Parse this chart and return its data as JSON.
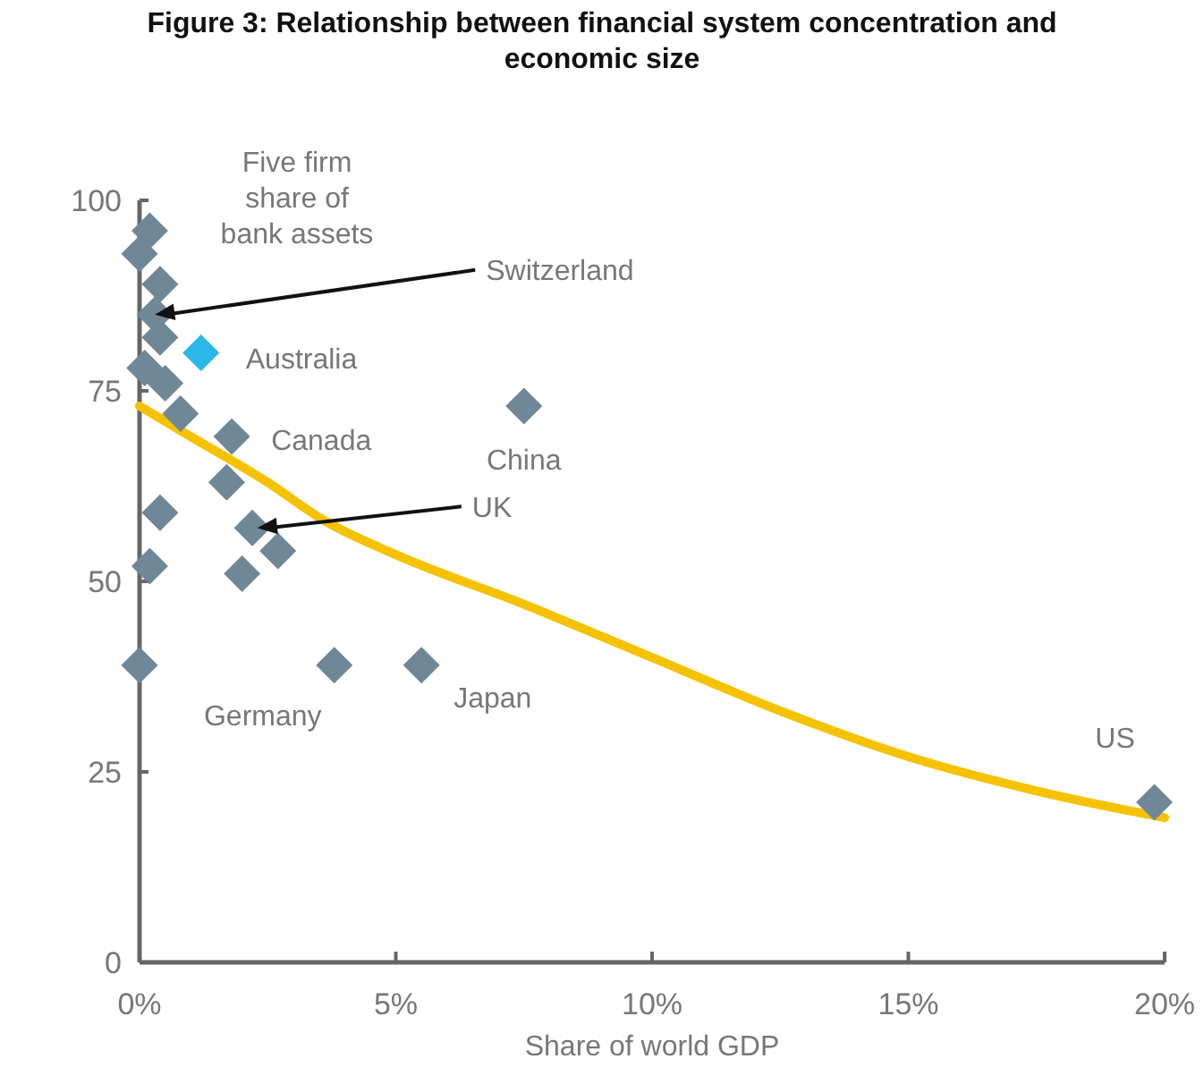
{
  "chart_data": {
    "type": "scatter",
    "title": "Figure 3: Relationship between financial system concentration and economic size",
    "xlabel": "Share of world GDP",
    "ylabel": "Five firm share of bank assets",
    "xlim": [
      0,
      20
    ],
    "xticks": [
      {
        "value": 0,
        "label": "0%"
      },
      {
        "value": 5,
        "label": "5%"
      },
      {
        "value": 10,
        "label": "10%"
      },
      {
        "value": 15,
        "label": "15%"
      },
      {
        "value": 20,
        "label": "20%"
      }
    ],
    "ylim": [
      0,
      100
    ],
    "yticks": [
      0,
      25,
      50,
      75,
      100
    ],
    "grid": false,
    "marker": "diamond",
    "series": [
      {
        "x": [
          0.2,
          0,
          0.4,
          0.3,
          0.4,
          0.1,
          0.5,
          1.2,
          0.8,
          1.8,
          1.7,
          0.4,
          2.2,
          2.7,
          0.2,
          2,
          0,
          3.8,
          5.5,
          7.5,
          19.8
        ],
        "values": [
          96,
          93,
          89,
          85,
          82,
          78,
          76,
          80,
          72,
          69,
          63,
          59,
          57,
          54,
          52,
          51,
          39,
          39,
          39,
          73,
          21
        ],
        "colors": [
          "#6f8796",
          "#6f8796",
          "#6f8796",
          "#6f8796",
          "#6f8796",
          "#6f8796",
          "#6f8796",
          "#2bb8e8",
          "#6f8796",
          "#6f8796",
          "#6f8796",
          "#6f8796",
          "#6f8796",
          "#6f8796",
          "#6f8796",
          "#6f8796",
          "#6f8796",
          "#6f8796",
          "#6f8796",
          "#6f8796",
          "#6f8796"
        ]
      },
      {
        "type": "line",
        "color": "#f5c200",
        "marker": "none",
        "line_style": "solid",
        "x": [
          0,
          1,
          2.5,
          3.6,
          5,
          7.5,
          10,
          12.5,
          15,
          17.5,
          20
        ],
        "values": [
          73,
          69,
          63,
          58,
          53.5,
          47,
          40,
          33,
          27,
          22.5,
          19
        ]
      }
    ],
    "annotations": [
      {
        "text": "Switzerland",
        "x": 0.3,
        "y": 85
      },
      {
        "text": "Australia",
        "x": 1.2,
        "y": 80
      },
      {
        "text": "Canada",
        "x": 1.8,
        "y": 69
      },
      {
        "text": "China",
        "x": 7.5,
        "y": 73
      },
      {
        "text": "UK",
        "x": 2.3,
        "y": 57
      },
      {
        "text": "Germany",
        "x": 3.8,
        "y": 39
      },
      {
        "text": "Japan",
        "x": 5.5,
        "y": 39
      },
      {
        "text": "US",
        "x": 19.8,
        "y": 21
      }
    ]
  }
}
